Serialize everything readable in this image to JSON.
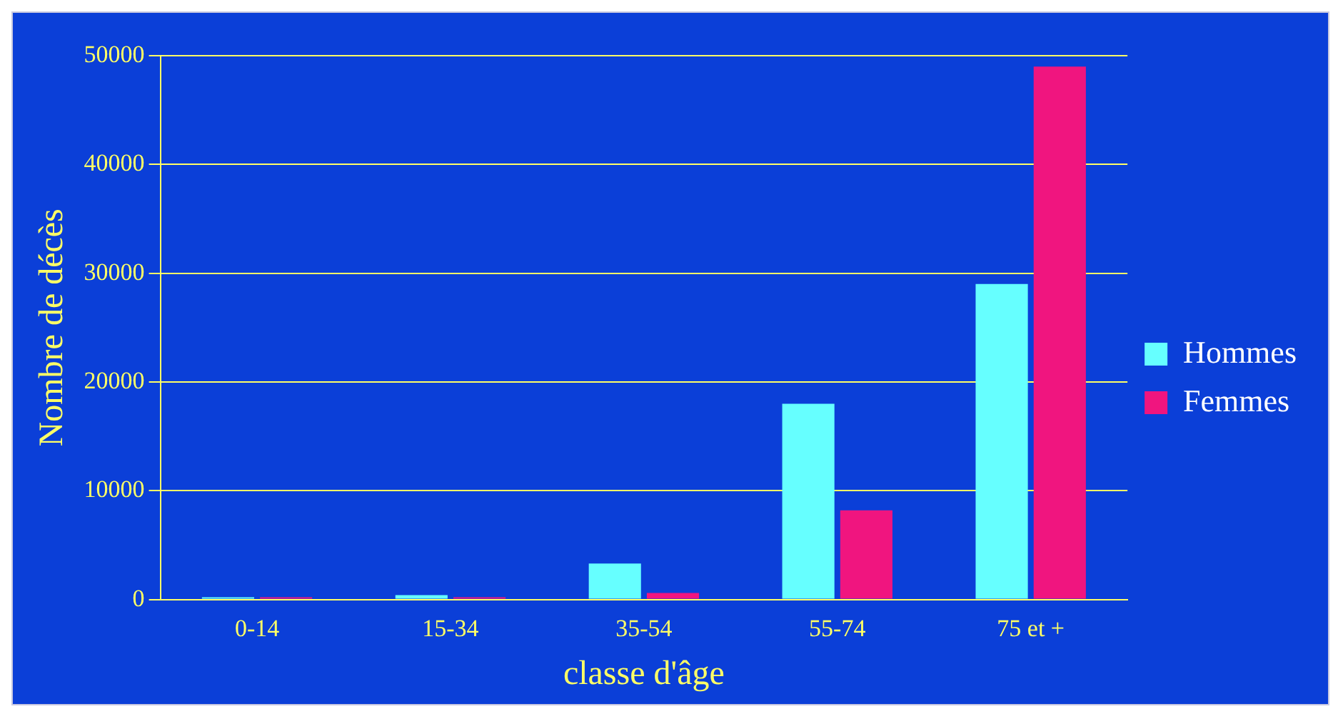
{
  "chart_data": {
    "type": "bar",
    "xlabel": "classe d'âge",
    "ylabel": "Nombre de décès",
    "categories": [
      "0-14",
      "15-34",
      "35-54",
      "55-74",
      "75 et +"
    ],
    "series": [
      {
        "name": "Hommes",
        "color": "#66ffff",
        "values": [
          200,
          400,
          3300,
          18000,
          29000
        ]
      },
      {
        "name": "Femmes",
        "color": "#f0157f",
        "values": [
          200,
          200,
          600,
          8200,
          49000
        ]
      }
    ],
    "ylim": [
      0,
      50000
    ],
    "yticks": [
      0,
      10000,
      20000,
      30000,
      40000,
      50000
    ],
    "grid": "y",
    "legend": "right"
  }
}
